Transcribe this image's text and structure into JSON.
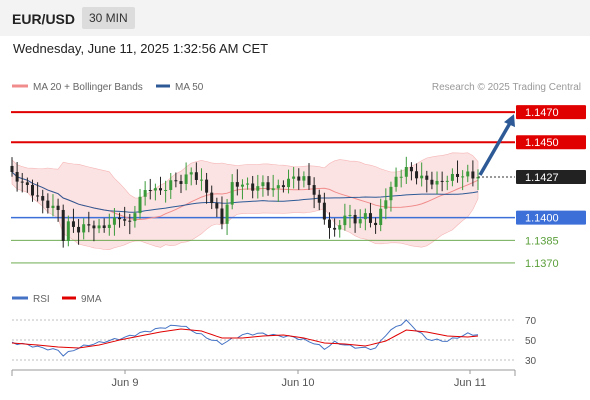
{
  "header": {
    "symbol": "EUR/USD",
    "timeframe": "30 MIN",
    "datetime": "Wednesday, June 11, 2025 1:32:56 AM CET",
    "source": "Research © 2025 Trading Central"
  },
  "legend": {
    "ma_bb": "MA 20 + Bollinger Bands",
    "ma50": "MA 50",
    "rsi": "RSI",
    "rsi_ma": "9MA"
  },
  "colors": {
    "candle_up": "#3a9a3a",
    "candle_down": "#222222",
    "bollinger_fill": "#fbdada",
    "ma20": "#f08c8c",
    "ma50": "#2d5a96",
    "resistance": "#e00000",
    "pivot": "#3d6fd8",
    "support": "#5a9f3a",
    "rsi": "#4472c4",
    "rsi_ma": "#e00000",
    "arrow": "#2d5a96"
  },
  "chart_data": [
    {
      "type": "candlestick",
      "title": "EUR/USD 30 MIN",
      "x_labels": [
        "Jun 9",
        "Jun 10",
        "Jun 11"
      ],
      "ylim": [
        1.1362,
        1.1478
      ],
      "last_price": 1.1427,
      "levels": [
        {
          "value": 1.147,
          "label": "1.1470",
          "kind": "resistance"
        },
        {
          "value": 1.145,
          "label": "1.1450",
          "kind": "resistance"
        },
        {
          "value": 1.14,
          "label": "1.1400",
          "kind": "pivot"
        },
        {
          "value": 1.1385,
          "label": "1.1385",
          "kind": "support"
        },
        {
          "value": 1.137,
          "label": "1.1370",
          "kind": "support"
        }
      ],
      "projection": {
        "from": 1.1427,
        "to": 1.147
      },
      "anchors": [
        [
          0,
          1.1428
        ],
        [
          3,
          1.1422
        ],
        [
          6,
          1.1412
        ],
        [
          9,
          1.1404
        ],
        [
          10,
          1.1385
        ],
        [
          11,
          1.1394
        ],
        [
          13,
          1.139
        ],
        [
          15,
          1.1395
        ],
        [
          17,
          1.1394
        ],
        [
          19,
          1.1398
        ],
        [
          21,
          1.1402
        ],
        [
          23,
          1.1396
        ],
        [
          25,
          1.1412
        ],
        [
          27,
          1.1418
        ],
        [
          29,
          1.1416
        ],
        [
          31,
          1.1424
        ],
        [
          33,
          1.1426
        ],
        [
          35,
          1.1432
        ],
        [
          37,
          1.1424
        ],
        [
          39,
          1.141
        ],
        [
          41,
          1.1395
        ],
        [
          43,
          1.142
        ],
        [
          45,
          1.1422
        ],
        [
          47,
          1.1421
        ],
        [
          49,
          1.1424
        ],
        [
          51,
          1.142
        ],
        [
          53,
          1.1422
        ],
        [
          55,
          1.1425
        ],
        [
          57,
          1.1424
        ],
        [
          59,
          1.1416
        ],
        [
          61,
          1.14
        ],
        [
          63,
          1.1392
        ],
        [
          65,
          1.1404
        ],
        [
          67,
          1.1398
        ],
        [
          69,
          1.14
        ],
        [
          71,
          1.1393
        ],
        [
          73,
          1.1412
        ],
        [
          75,
          1.1426
        ],
        [
          77,
          1.1434
        ],
        [
          79,
          1.143
        ],
        [
          81,
          1.1426
        ],
        [
          83,
          1.1422
        ],
        [
          85,
          1.1424
        ],
        [
          87,
          1.1426
        ],
        [
          89,
          1.1428
        ],
        [
          91,
          1.1427
        ]
      ]
    },
    {
      "type": "line",
      "title": "RSI",
      "ylim": [
        25,
        75
      ],
      "ticks": [
        70,
        50,
        30
      ],
      "series": [
        {
          "name": "RSI",
          "anchors": [
            [
              0,
              46
            ],
            [
              5,
              43
            ],
            [
              9,
              41
            ],
            [
              10,
              36
            ],
            [
              13,
              42
            ],
            [
              17,
              46
            ],
            [
              21,
              52
            ],
            [
              25,
              58
            ],
            [
              29,
              61
            ],
            [
              33,
              64
            ],
            [
              37,
              56
            ],
            [
              41,
              47
            ],
            [
              45,
              54
            ],
            [
              49,
              56
            ],
            [
              53,
              55
            ],
            [
              55,
              54
            ],
            [
              59,
              46
            ],
            [
              61,
              40
            ],
            [
              63,
              47
            ],
            [
              67,
              44
            ],
            [
              71,
              42
            ],
            [
              73,
              55
            ],
            [
              75,
              62
            ],
            [
              77,
              68
            ],
            [
              79,
              60
            ],
            [
              81,
              52
            ],
            [
              85,
              50
            ],
            [
              89,
              55
            ],
            [
              91,
              54
            ]
          ]
        },
        {
          "name": "9MA",
          "anchors": [
            [
              0,
              47
            ],
            [
              5,
              45
            ],
            [
              9,
              43
            ],
            [
              13,
              42
            ],
            [
              17,
              45
            ],
            [
              21,
              50
            ],
            [
              25,
              54
            ],
            [
              29,
              58
            ],
            [
              33,
              61
            ],
            [
              37,
              59
            ],
            [
              41,
              52
            ],
            [
              45,
              52
            ],
            [
              49,
              54
            ],
            [
              53,
              55
            ],
            [
              57,
              52
            ],
            [
              61,
              47
            ],
            [
              65,
              46
            ],
            [
              69,
              44
            ],
            [
              73,
              49
            ],
            [
              77,
              60
            ],
            [
              81,
              58
            ],
            [
              85,
              54
            ],
            [
              89,
              53
            ],
            [
              91,
              54
            ]
          ]
        }
      ]
    }
  ]
}
